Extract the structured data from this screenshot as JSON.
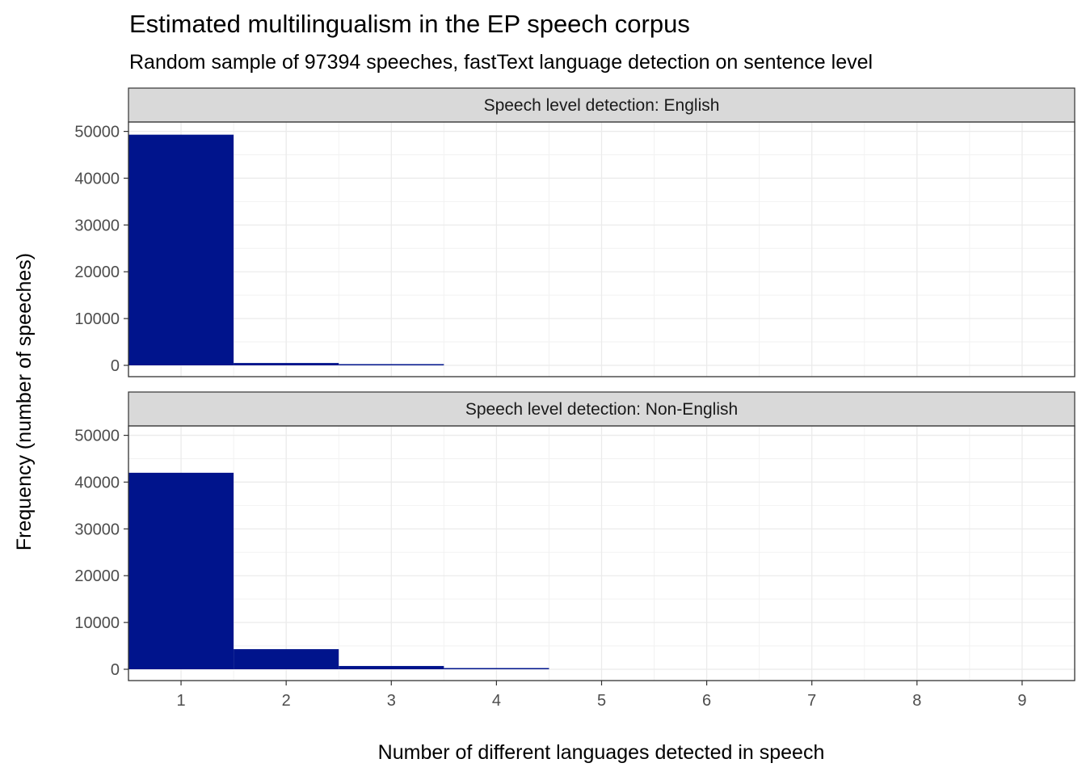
{
  "chart_data": {
    "type": "bar",
    "title": "Estimated multilingualism in the EP speech corpus",
    "subtitle": "Random sample of 97394 speeches, fastText language detection on sentence level",
    "xlabel": "Number of different languages detected in speech",
    "ylabel": "Frequency (number of speeches)",
    "x_ticks": [
      1,
      2,
      3,
      4,
      5,
      6,
      7,
      8,
      9
    ],
    "y_ticks": [
      0,
      10000,
      20000,
      30000,
      40000,
      50000
    ],
    "xlim": [
      0.5,
      9.5
    ],
    "ylim": [
      0,
      52000
    ],
    "grid": true,
    "bar_color": "#00148C",
    "panels": [
      {
        "strip": "Speech level detection: English",
        "x": [
          1,
          2,
          3,
          4
        ],
        "values": [
          49300,
          500,
          20,
          0
        ]
      },
      {
        "strip": "Speech level detection: Non-English",
        "x": [
          1,
          2,
          3,
          4
        ],
        "values": [
          42000,
          4300,
          700,
          120
        ]
      }
    ]
  }
}
